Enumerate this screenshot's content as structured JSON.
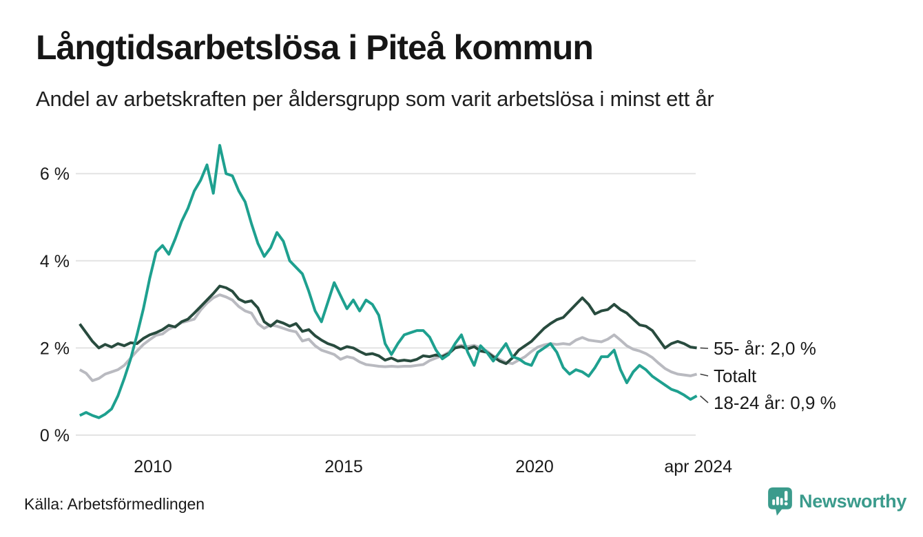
{
  "header": {
    "title": "Långtidsarbetslösa i Piteå kommun",
    "subtitle": "Andel av arbetskraften per åldersgrupp som varit arbetslösa i minst ett år"
  },
  "footer": {
    "source": "Källa: Arbetsförmedlingen",
    "brand": "Newsworthy"
  },
  "colors": {
    "text": "#1a1a1a",
    "grid": "#e3e3e3",
    "connector": "#3c3c3c",
    "brand_teal": "#3b9b8c",
    "background": "#ffffff"
  },
  "chart_data": {
    "type": "line",
    "title": "Långtidsarbetslösa i Piteå kommun",
    "subtitle": "Andel av arbetskraften per åldersgrupp som varit arbetslösa i minst ett år",
    "unit": "%",
    "x_start": 2008.083,
    "x_step": 0.1667,
    "xlim": [
      2008.0,
      2024.35
    ],
    "ylim": [
      0,
      6.9
    ],
    "grid": true,
    "legend_position": "right-end-labels",
    "x_ticks": [
      {
        "t": 2010,
        "label": "2010"
      },
      {
        "t": 2015,
        "label": "2015"
      },
      {
        "t": 2020,
        "label": "2020"
      },
      {
        "t": 2024.29,
        "label": "apr 2024"
      }
    ],
    "y_ticks": [
      {
        "v": 0,
        "label": "0 %"
      },
      {
        "v": 2,
        "label": "2 %"
      },
      {
        "v": 4,
        "label": "4 %"
      },
      {
        "v": 6,
        "label": "6 %"
      }
    ],
    "series": [
      {
        "name": "55- år",
        "end_label": "55- år: 2,0 %",
        "last_value_label": "2,0 %",
        "color": "#284b3e",
        "values": [
          2.55,
          2.35,
          2.15,
          2.0,
          2.08,
          2.02,
          2.1,
          2.05,
          2.12,
          2.1,
          2.22,
          2.3,
          2.35,
          2.42,
          2.52,
          2.48,
          2.6,
          2.66,
          2.8,
          2.95,
          3.1,
          3.25,
          3.42,
          3.38,
          3.3,
          3.12,
          3.05,
          3.08,
          2.92,
          2.6,
          2.5,
          2.62,
          2.57,
          2.5,
          2.56,
          2.38,
          2.42,
          2.28,
          2.18,
          2.1,
          2.05,
          1.97,
          2.03,
          2.0,
          1.92,
          1.85,
          1.87,
          1.82,
          1.72,
          1.77,
          1.7,
          1.72,
          1.7,
          1.74,
          1.82,
          1.8,
          1.84,
          1.8,
          1.87,
          2.0,
          2.03,
          1.98,
          2.03,
          1.93,
          1.9,
          1.8,
          1.7,
          1.64,
          1.77,
          1.95,
          2.05,
          2.15,
          2.3,
          2.45,
          2.56,
          2.65,
          2.7,
          2.85,
          3.0,
          3.15,
          3.0,
          2.78,
          2.85,
          2.88,
          3.0,
          2.88,
          2.8,
          2.66,
          2.53,
          2.5,
          2.4,
          2.2,
          2.0,
          2.1,
          2.15,
          2.1,
          2.02,
          2.0
        ]
      },
      {
        "name": "Totalt",
        "end_label": "Totalt",
        "last_value_label": "1,4 %",
        "color": "#b9bac0",
        "values": [
          1.5,
          1.42,
          1.25,
          1.3,
          1.4,
          1.45,
          1.5,
          1.6,
          1.77,
          1.93,
          2.08,
          2.19,
          2.29,
          2.32,
          2.43,
          2.5,
          2.58,
          2.62,
          2.66,
          2.87,
          3.03,
          3.15,
          3.22,
          3.17,
          3.1,
          2.95,
          2.85,
          2.8,
          2.56,
          2.45,
          2.53,
          2.5,
          2.45,
          2.4,
          2.37,
          2.16,
          2.2,
          2.05,
          1.95,
          1.9,
          1.85,
          1.74,
          1.8,
          1.77,
          1.68,
          1.62,
          1.6,
          1.58,
          1.57,
          1.58,
          1.57,
          1.58,
          1.58,
          1.6,
          1.62,
          1.71,
          1.77,
          1.82,
          1.9,
          2.03,
          2.06,
          2.03,
          2.06,
          2.0,
          1.93,
          1.82,
          1.74,
          1.67,
          1.64,
          1.72,
          1.8,
          1.92,
          2.02,
          2.07,
          2.1,
          2.08,
          2.1,
          2.08,
          2.18,
          2.24,
          2.18,
          2.16,
          2.14,
          2.2,
          2.3,
          2.18,
          2.05,
          1.97,
          1.93,
          1.87,
          1.78,
          1.65,
          1.53,
          1.45,
          1.4,
          1.38,
          1.36,
          1.4
        ]
      },
      {
        "name": "18-24 år",
        "end_label": "18-24 år: 0,9 %",
        "last_value_label": "0,9 %",
        "color": "#1ea08f",
        "values": [
          0.45,
          0.52,
          0.45,
          0.4,
          0.48,
          0.6,
          0.9,
          1.3,
          1.75,
          2.3,
          2.9,
          3.6,
          4.2,
          4.35,
          4.15,
          4.5,
          4.9,
          5.2,
          5.6,
          5.85,
          6.2,
          5.55,
          6.65,
          6.0,
          5.95,
          5.6,
          5.35,
          4.85,
          4.4,
          4.1,
          4.3,
          4.65,
          4.45,
          4.0,
          3.85,
          3.7,
          3.3,
          2.85,
          2.6,
          3.05,
          3.5,
          3.2,
          2.9,
          3.1,
          2.85,
          3.1,
          3.0,
          2.75,
          2.1,
          1.85,
          2.1,
          2.3,
          2.35,
          2.4,
          2.4,
          2.25,
          1.95,
          1.75,
          1.85,
          2.1,
          2.3,
          1.9,
          1.6,
          2.05,
          1.9,
          1.7,
          1.9,
          2.1,
          1.8,
          1.75,
          1.65,
          1.6,
          1.9,
          2.0,
          2.1,
          1.9,
          1.55,
          1.4,
          1.5,
          1.45,
          1.35,
          1.55,
          1.8,
          1.8,
          1.95,
          1.5,
          1.2,
          1.45,
          1.6,
          1.5,
          1.35,
          1.25,
          1.15,
          1.05,
          1.0,
          0.92,
          0.82,
          0.9
        ]
      }
    ]
  }
}
